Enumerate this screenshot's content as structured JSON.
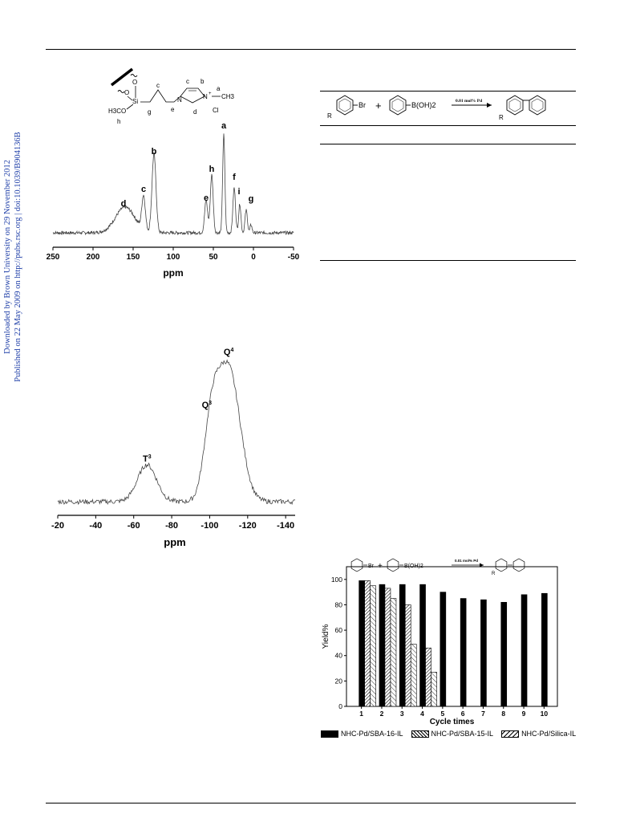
{
  "sidebar": {
    "line1": "Downloaded by Brown University on 29 November 2012",
    "line2": "Published on 22 May 2009 on http://pubs.rsc.org | doi:10.1039/B904136B"
  },
  "figure_structure": {
    "labels": [
      "a",
      "b",
      "c",
      "d",
      "e",
      "f",
      "g",
      "h"
    ],
    "si": "Si",
    "o1": "O",
    "o2": "O",
    "methoxy": "H3CO",
    "n_methyl": "N",
    "n_plus": "N",
    "plus": "+",
    "ch3": "CH3",
    "anion": "Cl"
  },
  "scheme": {
    "r_left": "R",
    "br": "Br",
    "plus": "+",
    "boronic": "B(OH)2",
    "condition": "0.01 mol% Pd",
    "r_right": "R"
  },
  "chart_data": [
    {
      "type": "line",
      "name": "13C NMR",
      "xlabel": "ppm",
      "x_ticks": [
        250,
        200,
        150,
        100,
        50,
        0,
        -50
      ],
      "xlim": [
        250,
        -50
      ],
      "peaks": [
        {
          "label": "d",
          "ppm": 160
        },
        {
          "label": "c",
          "ppm": 137
        },
        {
          "label": "b",
          "ppm": 124
        },
        {
          "label": "e",
          "ppm": 59
        },
        {
          "label": "h",
          "ppm": 52
        },
        {
          "label": "a",
          "ppm": 37
        },
        {
          "label": "f",
          "ppm": 24
        },
        {
          "label": "i",
          "ppm": 17
        },
        {
          "label": "g",
          "ppm": 9
        }
      ]
    },
    {
      "type": "line",
      "name": "29Si NMR",
      "xlabel": "ppm",
      "x_ticks": [
        -20,
        -40,
        -60,
        -80,
        -100,
        -120,
        -140
      ],
      "xlim": [
        -20,
        -145
      ],
      "peaks": [
        {
          "label": "T",
          "sup": "3",
          "ppm": -67
        },
        {
          "label": "Q",
          "sup": "3",
          "ppm": -101
        },
        {
          "label": "Q",
          "sup": "4",
          "ppm": -110
        }
      ]
    },
    {
      "type": "bar",
      "name": "recycling",
      "xlabel": "Cycle times",
      "ylabel": "Yield%",
      "ylim": [
        0,
        110
      ],
      "y_ticks": [
        0,
        20,
        40,
        60,
        80,
        100
      ],
      "categories": [
        "1",
        "2",
        "3",
        "4",
        "5",
        "6",
        "7",
        "8",
        "9",
        "10"
      ],
      "series": [
        {
          "name": "NHC-Pd/SBA-16-IL",
          "color": "#000000",
          "values": [
            99,
            96,
            96,
            96,
            90,
            85,
            84,
            82,
            88,
            89
          ]
        },
        {
          "name": "NHC-Pd/SBA-15-IL",
          "color": "#888888",
          "values": [
            99,
            93,
            80,
            46,
            null,
            null,
            null,
            null,
            null,
            null
          ]
        },
        {
          "name": "NHC-Pd/Silica-IL",
          "color": "#ffffff",
          "values": [
            95,
            85,
            49,
            27,
            null,
            null,
            null,
            null,
            null,
            null
          ]
        }
      ],
      "scheme": {
        "br": "Br",
        "plus": "+",
        "boronic": "B(OH)2",
        "condition": "0.01 mol% Pd",
        "r": "R"
      }
    }
  ]
}
